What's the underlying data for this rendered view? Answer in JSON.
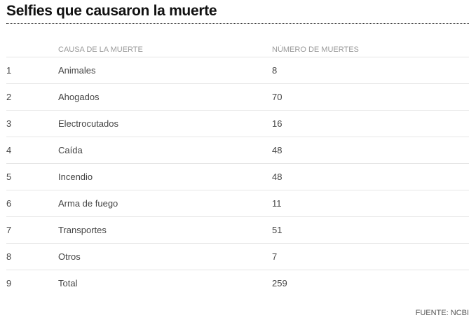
{
  "title": "Selfies que causaron la muerte",
  "source": "FUENTE: NCBI",
  "chart_data": {
    "type": "table",
    "title": "Selfies que causaron la muerte",
    "columns": [
      "",
      "CAUSA DE LA MUERTE",
      "NÚMERO DE MUERTES"
    ],
    "rows": [
      {
        "rank": "1",
        "cause": "Animales",
        "deaths": "8"
      },
      {
        "rank": "2",
        "cause": "Ahogados",
        "deaths": "70"
      },
      {
        "rank": "3",
        "cause": "Electrocutados",
        "deaths": "16"
      },
      {
        "rank": "4",
        "cause": "Caída",
        "deaths": "48"
      },
      {
        "rank": "5",
        "cause": "Incendio",
        "deaths": "48"
      },
      {
        "rank": "6",
        "cause": "Arma de fuego",
        "deaths": "11"
      },
      {
        "rank": "7",
        "cause": "Transportes",
        "deaths": "51"
      },
      {
        "rank": "8",
        "cause": "Otros",
        "deaths": "7"
      },
      {
        "rank": "9",
        "cause": "Total",
        "deaths": "259"
      }
    ],
    "source": "FUENTE: NCBI"
  }
}
